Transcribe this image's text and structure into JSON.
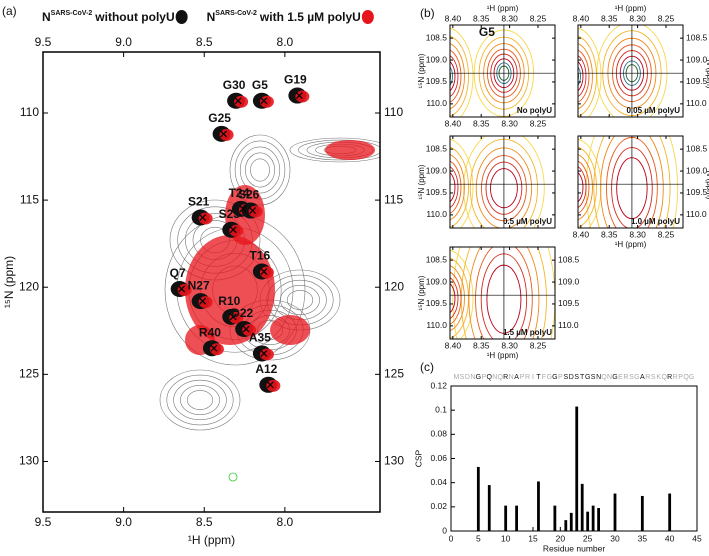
{
  "chart_data": [
    {
      "type": "spectrum",
      "panel_label": "(a)",
      "xlabel": "¹H (ppm)",
      "ylabel": "¹⁵N (ppm)",
      "xlim": [
        9.5,
        7.41
      ],
      "ylim": [
        106.5,
        132.9
      ],
      "xticks": [
        9.5,
        {
          "value": 9,
          "label": "9.0"
        },
        8.5,
        {
          "value": 8,
          "label": "8.0"
        }
      ],
      "yticks": [
        110,
        115,
        120,
        125,
        130
      ],
      "series": [
        {
          "name": "N",
          "superscript": "SARS-CoV-2",
          "suffix": "without polyU",
          "color": "#111111"
        },
        {
          "name": "N",
          "superscript": "SARS-CoV-2",
          "suffix": "with 1.5 µM polyU",
          "color": "#e8141c"
        }
      ],
      "peaks": [
        {
          "label": "G30",
          "x": 8.29,
          "y": 109.3
        },
        {
          "label": "G5",
          "x": 8.13,
          "y": 109.3
        },
        {
          "label": "G19",
          "x": 7.91,
          "y": 109.0
        },
        {
          "label": "G25",
          "x": 8.38,
          "y": 111.2
        },
        {
          "label": "T24",
          "x": 8.26,
          "y": 115.5
        },
        {
          "label": "S21",
          "x": 8.51,
          "y": 116.0
        },
        {
          "label": "S26",
          "x": 8.2,
          "y": 115.6
        },
        {
          "label": "S23",
          "x": 8.32,
          "y": 116.7
        },
        {
          "label": "T16",
          "x": 8.13,
          "y": 119.1
        },
        {
          "label": "Q7",
          "x": 8.64,
          "y": 120.1
        },
        {
          "label": "N27",
          "x": 8.51,
          "y": 120.8
        },
        {
          "label": "R10",
          "x": 8.32,
          "y": 121.7
        },
        {
          "label": "D22",
          "x": 8.24,
          "y": 122.4
        },
        {
          "label": "R40",
          "x": 8.44,
          "y": 123.5
        },
        {
          "label": "A35",
          "x": 8.13,
          "y": 123.8
        },
        {
          "label": "A12",
          "x": 8.09,
          "y": 125.6
        }
      ]
    },
    {
      "type": "spectrum_panels",
      "panel_label": "(b)",
      "xlabel": "¹H (ppm)",
      "ylabel": "¹⁵N (ppm)",
      "xlim": [
        8.405,
        8.22
      ],
      "ylim": [
        108.2,
        110.3
      ],
      "xticks": [
        {
          "value": 8.4,
          "label": "8.40"
        },
        8.35,
        {
          "value": 8.3,
          "label": "8.30"
        },
        8.25
      ],
      "yticks": [
        108.5,
        {
          "value": 109,
          "label": "109.0"
        },
        109.5,
        {
          "value": 110,
          "label": "110.0"
        }
      ],
      "crosshair": {
        "x": 8.31,
        "y": 109.3
      },
      "panels": [
        {
          "label": "No polyU",
          "peak": "G5"
        },
        {
          "label": "0.05 µM polyU"
        },
        {
          "label": "0.5 µM polyU"
        },
        {
          "label": "1.0 µM polyU"
        },
        {
          "label": "1.5 µM polyU"
        }
      ]
    },
    {
      "type": "bar",
      "panel_label": "(c)",
      "xlabel": "Residue number",
      "ylabel": "CSP",
      "color": "#000000",
      "sequence": [
        "M",
        "S",
        "D",
        "N",
        "G",
        "P",
        "Q",
        "N",
        "Q",
        "R",
        "N",
        "A",
        "P",
        "R",
        "I",
        "T",
        "F",
        "G",
        "G",
        "P",
        "S",
        "D",
        "S",
        "T",
        "G",
        "S",
        "N",
        "Q",
        "N",
        "G",
        "E",
        "R",
        "S",
        "G",
        "A",
        "R",
        "S",
        "K",
        "Q",
        "R",
        "R",
        "P",
        "Q",
        "G"
      ],
      "x": [
        5,
        7,
        10,
        12,
        16,
        19,
        21,
        22,
        23,
        24,
        25,
        26,
        27,
        30,
        35,
        40
      ],
      "values": [
        0.053,
        0.038,
        0.021,
        0.021,
        0.041,
        0.021,
        0.009,
        0.015,
        0.103,
        0.039,
        0.016,
        0.021,
        0.019,
        0.031,
        0.029,
        0.031
      ],
      "xlim": [
        0,
        45
      ],
      "ylim": [
        0,
        0.12
      ],
      "xticks": [
        0,
        5,
        10,
        15,
        20,
        25,
        30,
        35,
        40,
        45
      ],
      "yticks": [
        0,
        0.02,
        0.04,
        0.06,
        0.08,
        0.1,
        0.12
      ]
    }
  ]
}
